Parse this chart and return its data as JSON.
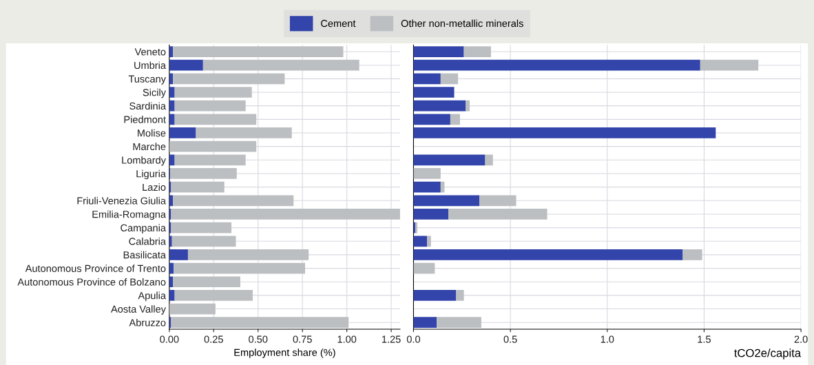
{
  "chart_data": [
    {
      "type": "bar",
      "orientation": "horizontal",
      "stacked": true,
      "xlabel": "Employment share (%)",
      "categories": [
        "Veneto",
        "Umbria",
        "Tuscany",
        "Sicily",
        "Sardinia",
        "Piedmont",
        "Molise",
        "Marche",
        "Lombardy",
        "Liguria",
        "Lazio",
        "Friuli-Venezia Giulia",
        "Emilia-Romagna",
        "Campania",
        "Calabria",
        "Basilicata",
        "Autonomous Province of Trento",
        "Autonomous Province of Bolzano",
        "Apulia",
        "Aosta Valley",
        "Abruzzo"
      ],
      "series": [
        {
          "name": "Cement",
          "color": "#3344aa",
          "values": [
            0.02,
            0.19,
            0.02,
            0.03,
            0.03,
            0.03,
            0.15,
            0,
            0.03,
            0.005,
            0.01,
            0.02,
            0.01,
            0.01,
            0.015,
            0.105,
            0.025,
            0.02,
            0.03,
            0,
            0.01
          ]
        },
        {
          "name": "Other non-metallic minerals",
          "color": "#bcbfc2",
          "values": [
            0.96,
            0.88,
            0.63,
            0.435,
            0.4,
            0.46,
            0.54,
            0.49,
            0.4,
            0.375,
            0.3,
            0.68,
            1.29,
            0.34,
            0.36,
            0.68,
            0.74,
            0.38,
            0.44,
            0.26,
            1.0
          ]
        }
      ],
      "xlim": [
        0,
        1.3
      ],
      "xticks": [
        {
          "value": 0,
          "label": "0.00"
        },
        {
          "value": 0.25,
          "label": "0.25"
        },
        {
          "value": 0.5,
          "label": "0.50"
        },
        {
          "value": 0.75,
          "label": "0.75"
        },
        {
          "value": 1.0,
          "label": "1.00"
        },
        {
          "value": 1.25,
          "label": "1.25"
        }
      ],
      "grid": true,
      "legend": "top"
    },
    {
      "type": "bar",
      "orientation": "horizontal",
      "stacked": true,
      "xlabel": "tCO2e/capita",
      "series": [
        {
          "color": "#3344aa",
          "values": [
            0.26,
            1.48,
            0.14,
            0.21,
            0.27,
            0.19,
            1.56,
            null,
            0.37,
            0,
            0.14,
            0.34,
            0.18,
            0.01,
            0.07,
            1.39,
            0,
            null,
            0.22,
            null,
            0.12
          ]
        },
        {
          "color": "#bcbfc2",
          "values": [
            0.14,
            0.3,
            0.09,
            0,
            0.02,
            0.05,
            0,
            null,
            0.04,
            0.14,
            0.02,
            0.19,
            0.51,
            0.01,
            0.02,
            0.1,
            0.11,
            null,
            0.04,
            null,
            0.23
          ]
        }
      ],
      "xlim": [
        0,
        2.0
      ],
      "xticks": [
        {
          "value": 0,
          "label": "0.0"
        },
        {
          "value": 0.5,
          "label": "0.5"
        },
        {
          "value": 1.0,
          "label": "1.0"
        },
        {
          "value": 1.5,
          "label": "1.5"
        },
        {
          "value": 2.0,
          "label": "2.0"
        }
      ],
      "grid": true,
      "tick_labels": "x"
    }
  ]
}
